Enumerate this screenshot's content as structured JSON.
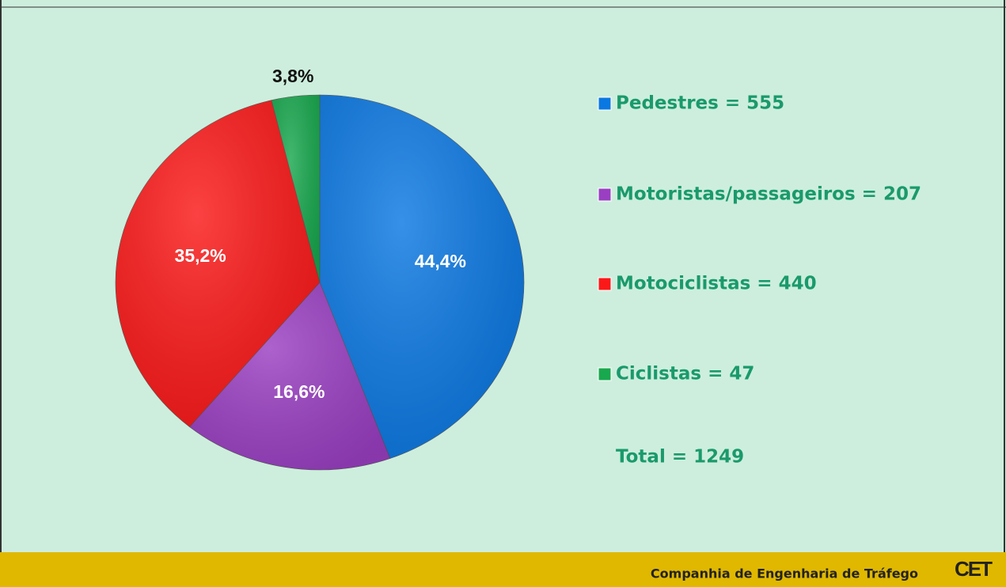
{
  "chart_data": {
    "type": "pie",
    "categories": [
      "Pedestres = 555",
      "Motoristas/passageiros = 207",
      "Motociclistas = 440",
      "Ciclistas = 47"
    ],
    "values": [
      44.4,
      16.6,
      35.2,
      3.8
    ],
    "value_labels": [
      "44,4%",
      "16,6%",
      "35,2%",
      "3,8%"
    ],
    "colors": [
      "#0b78e2",
      "#9a3fc2",
      "#fb1818",
      "#18a84e"
    ],
    "total": "Total = 1249"
  },
  "footer": {
    "text": "Companhia de Engenharia de Tráfego",
    "logo": "CET"
  }
}
